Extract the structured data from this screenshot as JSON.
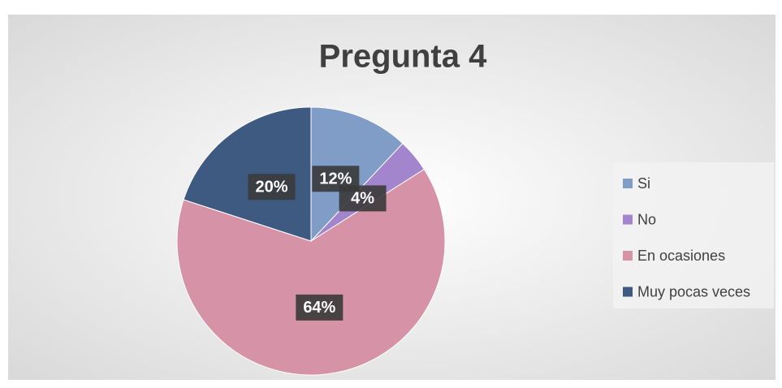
{
  "chart_data": {
    "type": "pie",
    "title": "Pregunta 4",
    "categories": [
      "Si",
      "No",
      "En ocasiones",
      "Muy pocas veces"
    ],
    "values": [
      12,
      4,
      64,
      20
    ],
    "value_labels": [
      "12%",
      "4%",
      "64%",
      "20%"
    ],
    "colors": [
      "#7f9dc6",
      "#a285cc",
      "#d692a6",
      "#3e5a80"
    ],
    "legend": "right"
  }
}
